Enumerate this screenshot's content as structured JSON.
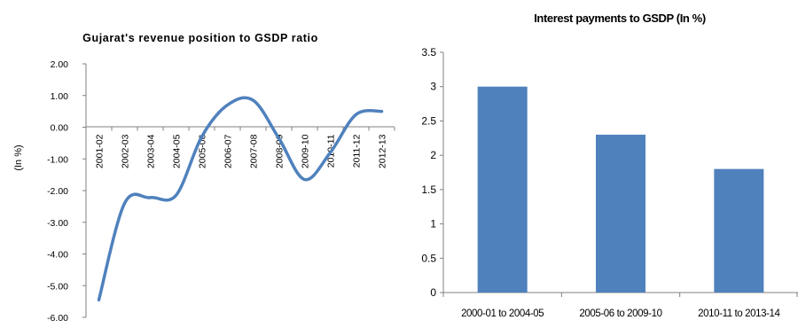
{
  "chart_data": [
    {
      "type": "line",
      "title": "Gujarat's revenue position to GSDP ratio",
      "xlabel": "",
      "ylabel": "(In %)",
      "ylim": [
        -6,
        2
      ],
      "yticks": [
        "2.00",
        "1.00",
        "0.00",
        "-1.00",
        "-2.00",
        "-3.00",
        "-4.00",
        "-5.00",
        "-6.00"
      ],
      "categories": [
        "2001-02",
        "2002-03",
        "2003-04",
        "2004-05",
        "2005-06",
        "2006-07",
        "2007-08",
        "2008-09",
        "2009-10",
        "2010-11",
        "2011-12",
        "2012-13"
      ],
      "series": [
        {
          "values": [
            -5.45,
            -2.4,
            -2.22,
            -2.15,
            -0.3,
            0.7,
            0.85,
            -0.35,
            -1.65,
            -0.8,
            0.4,
            0.5
          ]
        }
      ],
      "line_color": "#4f81bd",
      "grid": false
    },
    {
      "type": "bar",
      "title": "Interest payments to GSDP (In %)",
      "xlabel": "",
      "ylabel": "",
      "ylim": [
        0,
        3.5
      ],
      "yticks": [
        "3.5",
        "3",
        "2.5",
        "2",
        "1.5",
        "1",
        "0.5",
        "0"
      ],
      "categories": [
        "2000-01 to 2004-05",
        "2005-06 to 2009-10",
        "2010-11 to 2013-14"
      ],
      "values": [
        3.0,
        2.3,
        1.8
      ],
      "bar_color": "#4f81bd",
      "grid": false
    }
  ]
}
